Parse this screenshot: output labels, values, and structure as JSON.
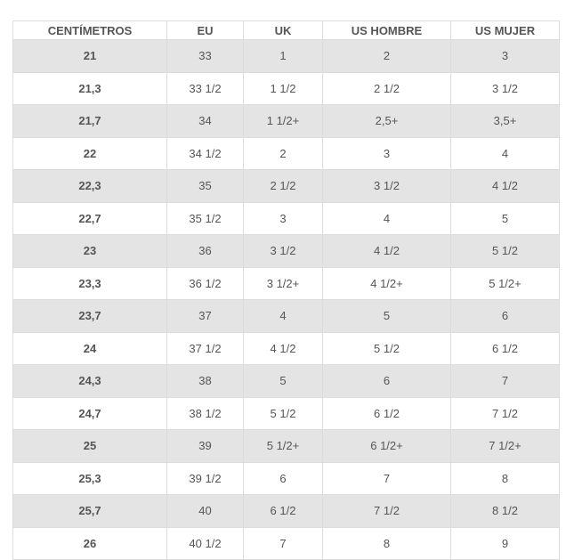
{
  "table": {
    "headers": [
      "CENTÍMETROS",
      "EU",
      "UK",
      "US HOMBRE",
      "US MUJER"
    ],
    "rows": [
      [
        "21",
        "33",
        "1",
        "2",
        "3"
      ],
      [
        "21,3",
        "33 1/2",
        "1 1/2",
        "2 1/2",
        "3 1/2"
      ],
      [
        "21,7",
        "34",
        "1 1/2+",
        "2,5+",
        "3,5+"
      ],
      [
        "22",
        "34 1/2",
        "2",
        "3",
        "4"
      ],
      [
        "22,3",
        "35",
        "2 1/2",
        "3 1/2",
        "4 1/2"
      ],
      [
        "22,7",
        "35 1/2",
        "3",
        "4",
        "5"
      ],
      [
        "23",
        "36",
        "3 1/2",
        "4 1/2",
        "5 1/2"
      ],
      [
        "23,3",
        "36 1/2",
        "3 1/2+",
        "4 1/2+",
        "5 1/2+"
      ],
      [
        "23,7",
        "37",
        "4",
        "5",
        "6"
      ],
      [
        "24",
        "37 1/2",
        "4 1/2",
        "5 1/2",
        "6 1/2"
      ],
      [
        "24,3",
        "38",
        "5",
        "6",
        "7"
      ],
      [
        "24,7",
        "38 1/2",
        "5 1/2",
        "6 1/2",
        "7 1/2"
      ],
      [
        "25",
        "39",
        "5 1/2+",
        "6 1/2+",
        "7 1/2+"
      ],
      [
        "25,3",
        "39 1/2",
        "6",
        "7",
        "8"
      ],
      [
        "25,7",
        "40",
        "6 1/2",
        "7 1/2",
        "8 1/2"
      ],
      [
        "26",
        "40 1/2",
        "7",
        "8",
        "9"
      ]
    ]
  },
  "colors": {
    "stripe": "#e4e4e4",
    "border": "#dcdcdc",
    "text": "#555555"
  }
}
